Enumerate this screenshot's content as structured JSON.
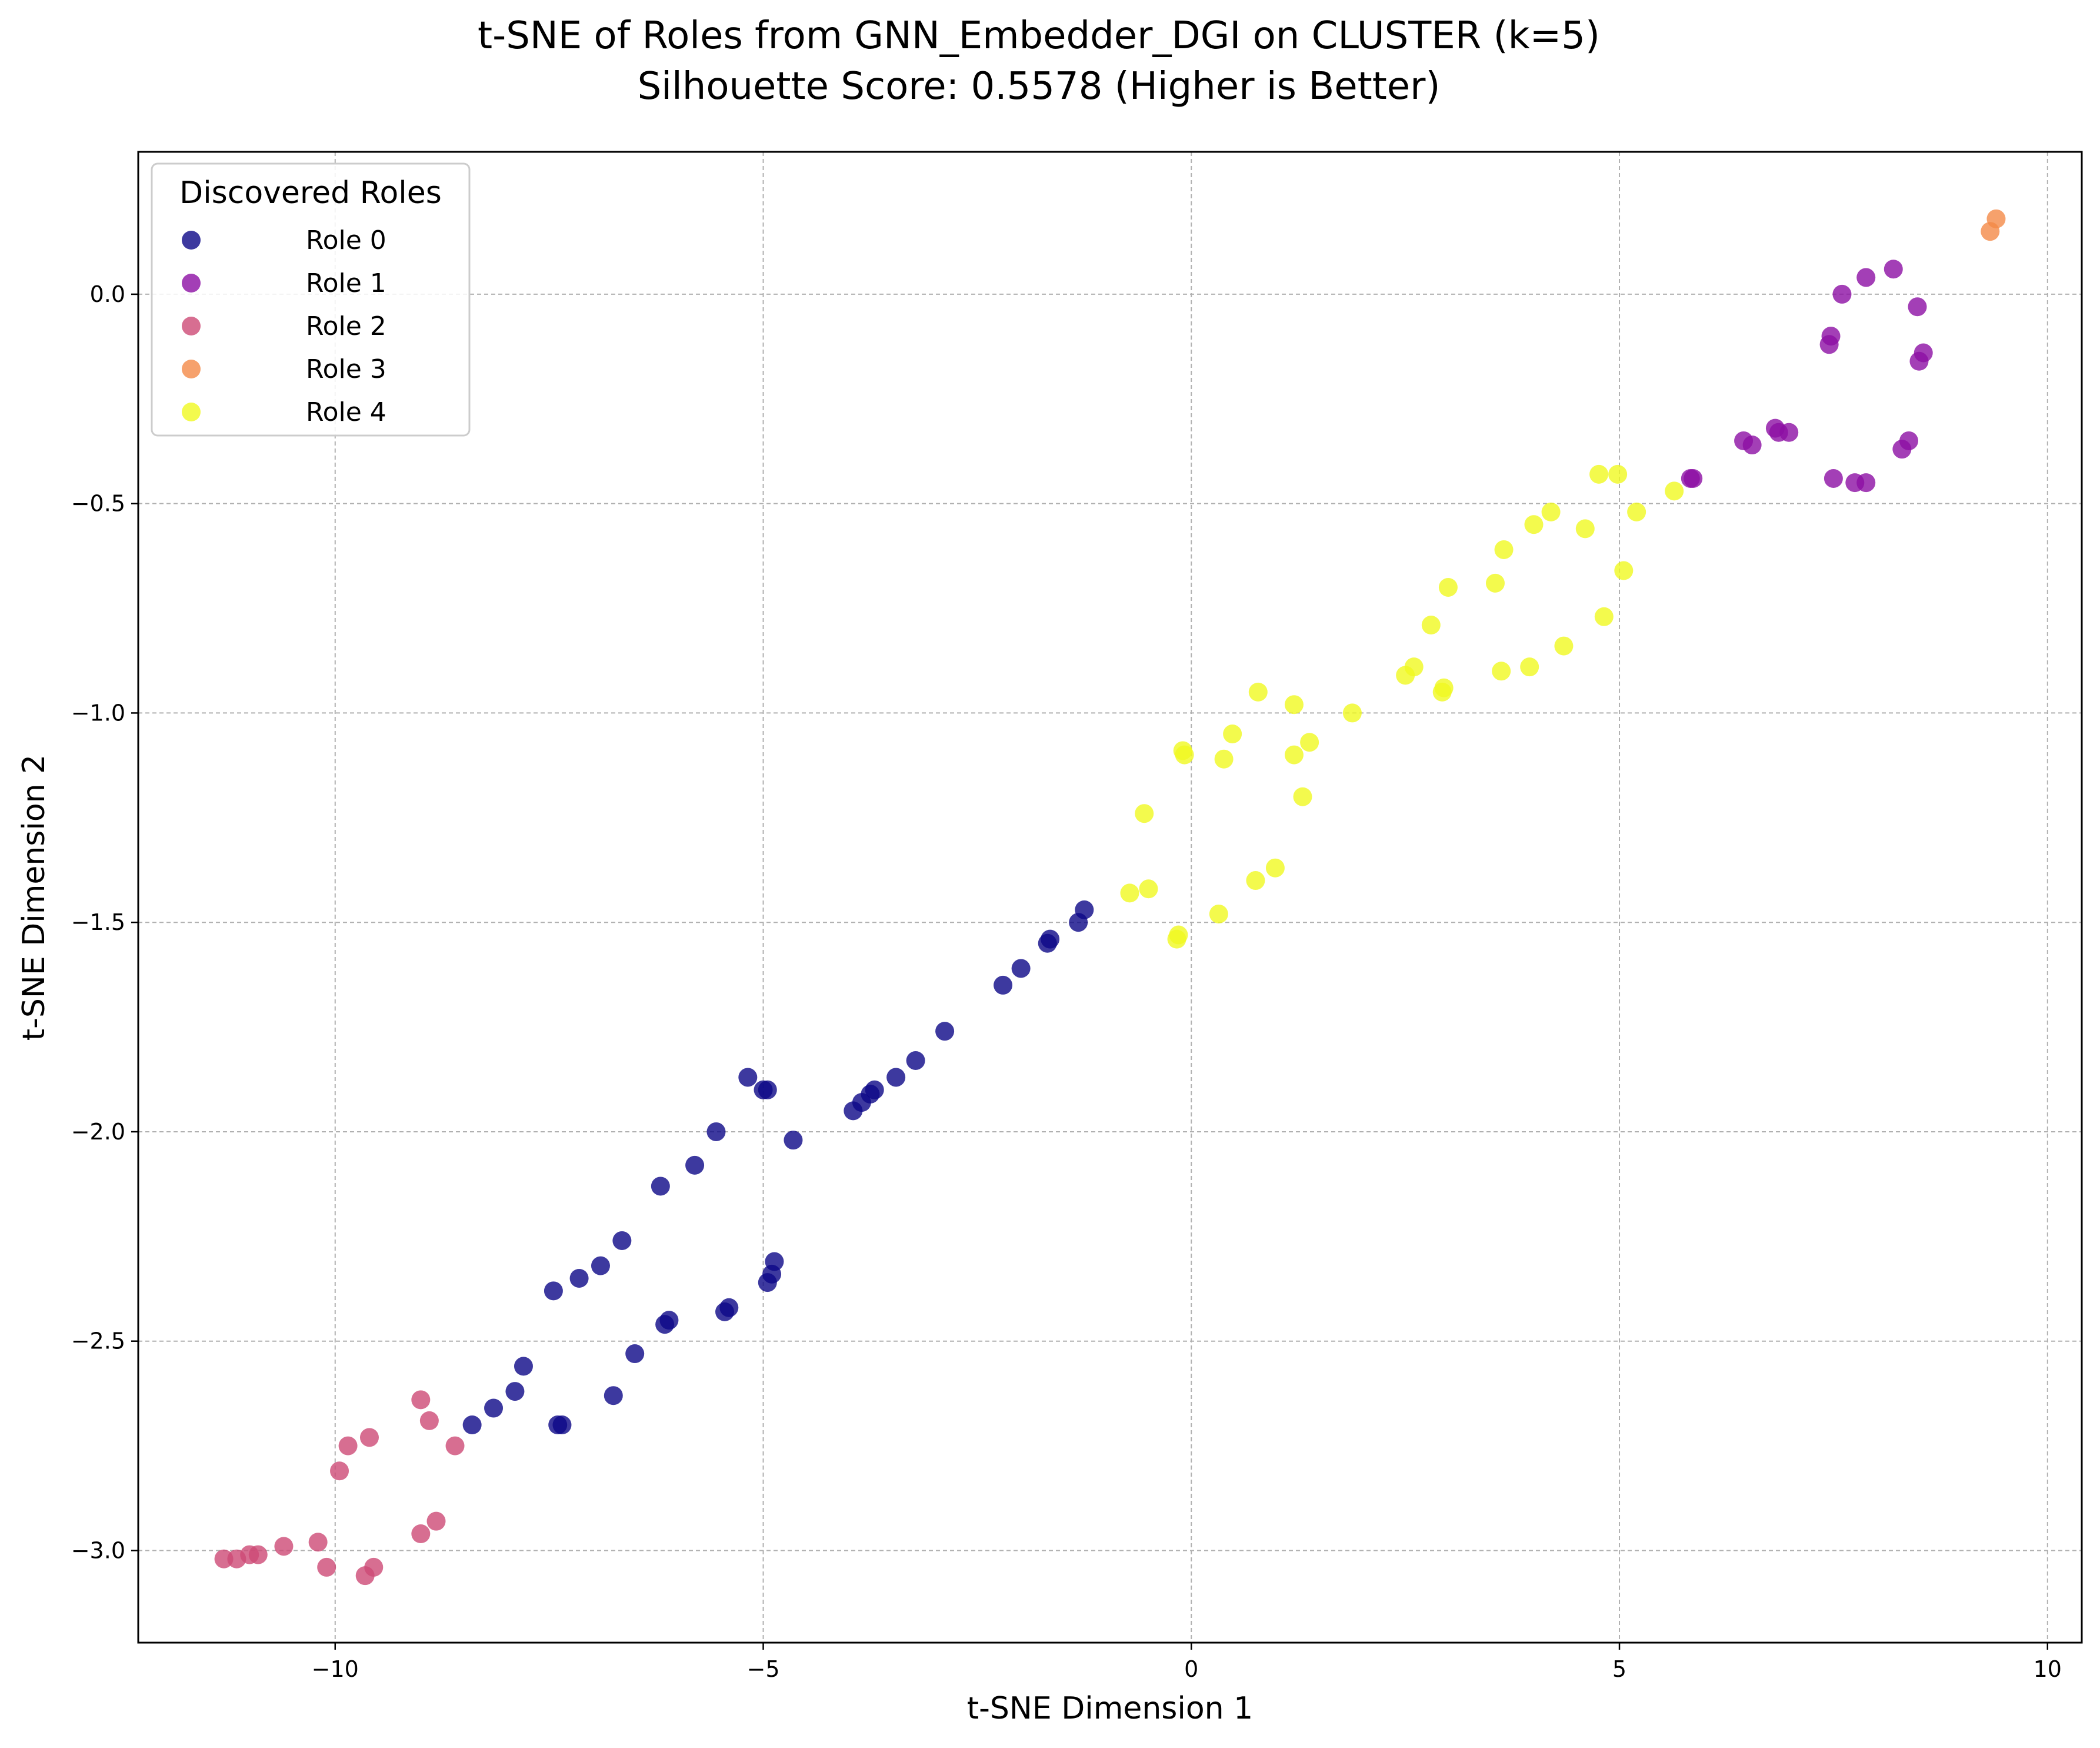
{
  "chart_data": {
    "type": "scatter",
    "title": "t-SNE of Roles from GNN_Embedder_DGI on CLUSTER (k=5)",
    "subtitle": "Silhouette Score: 0.5578 (Higher is Better)",
    "xlabel": "t-SNE Dimension 1",
    "ylabel": "t-SNE Dimension 2",
    "xlim": [
      -12.3,
      10.4
    ],
    "ylim": [
      -3.22,
      0.34
    ],
    "xticks": [
      -10,
      -5,
      0,
      5,
      10
    ],
    "xtick_labels": [
      "−10",
      "−5",
      "0",
      "5",
      "10"
    ],
    "yticks": [
      0.0,
      -0.5,
      -1.0,
      -1.5,
      -2.0,
      -2.5,
      -3.0
    ],
    "ytick_labels": [
      "0.0",
      "−0.5",
      "−1.0",
      "−1.5",
      "−2.0",
      "−2.5",
      "−3.0"
    ],
    "grid": true,
    "legend": {
      "title": "Discovered Roles",
      "placement": "top-left"
    },
    "series": [
      {
        "name": "Role 0",
        "color": "#0d0887",
        "points": [
          [
            -1.25,
            -1.47
          ],
          [
            -1.32,
            -1.5
          ],
          [
            -1.65,
            -1.54
          ],
          [
            -1.68,
            -1.55
          ],
          [
            -1.99,
            -1.61
          ],
          [
            -2.2,
            -1.65
          ],
          [
            -2.88,
            -1.76
          ],
          [
            -3.22,
            -1.83
          ],
          [
            -3.45,
            -1.87
          ],
          [
            -3.7,
            -1.9
          ],
          [
            -3.75,
            -1.91
          ],
          [
            -3.85,
            -1.93
          ],
          [
            -3.95,
            -1.95
          ],
          [
            -5.18,
            -1.87
          ],
          [
            -5.0,
            -1.9
          ],
          [
            -4.95,
            -1.9
          ],
          [
            -4.65,
            -2.02
          ],
          [
            -5.55,
            -2.0
          ],
          [
            -5.8,
            -2.08
          ],
          [
            -6.2,
            -2.13
          ],
          [
            -6.65,
            -2.26
          ],
          [
            -6.9,
            -2.32
          ],
          [
            -7.15,
            -2.35
          ],
          [
            -7.45,
            -2.38
          ],
          [
            -4.87,
            -2.31
          ],
          [
            -4.9,
            -2.34
          ],
          [
            -4.95,
            -2.36
          ],
          [
            -5.4,
            -2.42
          ],
          [
            -5.45,
            -2.43
          ],
          [
            -6.1,
            -2.45
          ],
          [
            -6.15,
            -2.46
          ],
          [
            -6.5,
            -2.53
          ],
          [
            -6.75,
            -2.63
          ],
          [
            -7.8,
            -2.56
          ],
          [
            -7.9,
            -2.62
          ],
          [
            -8.15,
            -2.66
          ],
          [
            -8.4,
            -2.7
          ],
          [
            -7.35,
            -2.7
          ],
          [
            -7.4,
            -2.7
          ]
        ]
      },
      {
        "name": "Role 1",
        "color": "#8c0fa4",
        "points": [
          [
            5.83,
            -0.44
          ],
          [
            5.86,
            -0.44
          ],
          [
            6.45,
            -0.35
          ],
          [
            6.55,
            -0.36
          ],
          [
            6.82,
            -0.32
          ],
          [
            6.86,
            -0.33
          ],
          [
            6.98,
            -0.33
          ],
          [
            7.45,
            -0.12
          ],
          [
            7.47,
            -0.1
          ],
          [
            7.5,
            -0.44
          ],
          [
            7.6,
            0.0
          ],
          [
            7.75,
            -0.45
          ],
          [
            7.88,
            -0.45
          ],
          [
            7.88,
            0.04
          ],
          [
            8.2,
            0.06
          ],
          [
            8.3,
            -0.37
          ],
          [
            8.38,
            -0.35
          ],
          [
            8.48,
            -0.03
          ],
          [
            8.5,
            -0.16
          ],
          [
            8.55,
            -0.14
          ]
        ]
      },
      {
        "name": "Role 2",
        "color": "#cd4a75",
        "points": [
          [
            -9.0,
            -2.64
          ],
          [
            -8.9,
            -2.69
          ],
          [
            -8.6,
            -2.75
          ],
          [
            -9.85,
            -2.75
          ],
          [
            -9.6,
            -2.73
          ],
          [
            -9.95,
            -2.81
          ],
          [
            -8.82,
            -2.93
          ],
          [
            -9.0,
            -2.96
          ],
          [
            -10.2,
            -2.98
          ],
          [
            -10.6,
            -2.99
          ],
          [
            -10.9,
            -3.01
          ],
          [
            -11.0,
            -3.01
          ],
          [
            -11.15,
            -3.02
          ],
          [
            -11.3,
            -3.02
          ],
          [
            -10.1,
            -3.04
          ],
          [
            -9.55,
            -3.04
          ],
          [
            -9.65,
            -3.06
          ]
        ]
      },
      {
        "name": "Role 3",
        "color": "#f48a47",
        "points": [
          [
            9.33,
            0.15
          ],
          [
            9.4,
            0.18
          ]
        ]
      },
      {
        "name": "Role 4",
        "color": "#f0f921",
        "points": [
          [
            5.64,
            -0.47
          ],
          [
            4.76,
            -0.43
          ],
          [
            4.98,
            -0.43
          ],
          [
            5.2,
            -0.52
          ],
          [
            4.6,
            -0.56
          ],
          [
            4.2,
            -0.52
          ],
          [
            4.0,
            -0.55
          ],
          [
            3.65,
            -0.61
          ],
          [
            3.55,
            -0.69
          ],
          [
            5.05,
            -0.66
          ],
          [
            3.0,
            -0.7
          ],
          [
            2.8,
            -0.79
          ],
          [
            4.82,
            -0.77
          ],
          [
            4.35,
            -0.84
          ],
          [
            3.95,
            -0.89
          ],
          [
            3.62,
            -0.9
          ],
          [
            2.6,
            -0.89
          ],
          [
            2.5,
            -0.91
          ],
          [
            2.95,
            -0.94
          ],
          [
            2.93,
            -0.95
          ],
          [
            0.78,
            -0.95
          ],
          [
            1.2,
            -0.98
          ],
          [
            1.88,
            -1.0
          ],
          [
            0.48,
            -1.05
          ],
          [
            1.38,
            -1.07
          ],
          [
            1.2,
            -1.1
          ],
          [
            0.38,
            -1.11
          ],
          [
            -0.1,
            -1.09
          ],
          [
            -0.08,
            -1.1
          ],
          [
            1.3,
            -1.2
          ],
          [
            -0.55,
            -1.24
          ],
          [
            0.98,
            -1.37
          ],
          [
            0.75,
            -1.4
          ],
          [
            -0.5,
            -1.42
          ],
          [
            -0.72,
            -1.43
          ],
          [
            0.32,
            -1.48
          ],
          [
            -0.15,
            -1.53
          ],
          [
            -0.17,
            -1.54
          ]
        ]
      }
    ]
  }
}
